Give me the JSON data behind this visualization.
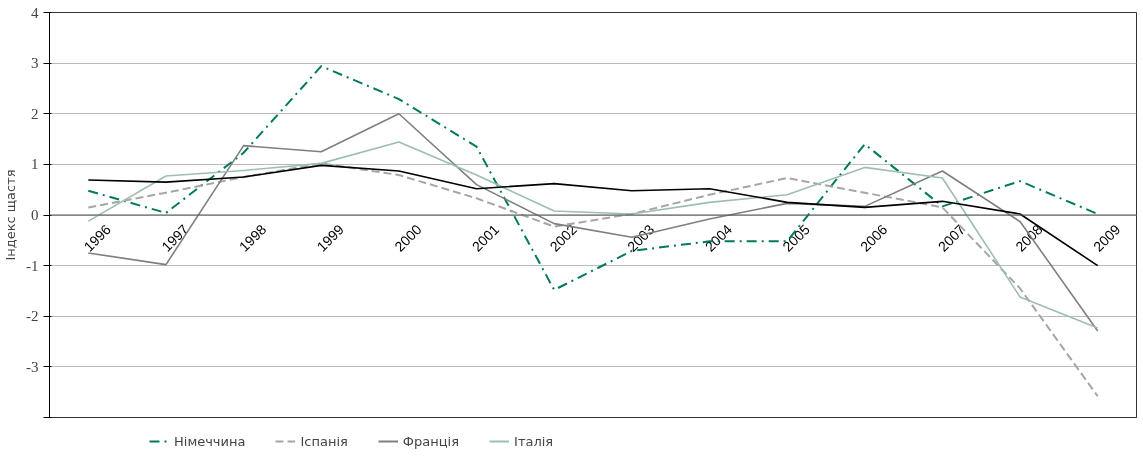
{
  "chart_data": {
    "type": "line",
    "ylabel": "Індекс щастя",
    "categories": [
      "1996",
      "1997",
      "1998",
      "1999",
      "2000",
      "2001",
      "2002",
      "2003",
      "2004",
      "2005",
      "2006",
      "2007",
      "2008",
      "2009"
    ],
    "series": [
      {
        "name": "Німеччина",
        "color": "#007a5e",
        "line_style": "dashdot",
        "values": [
          0.48,
          0.04,
          1.23,
          2.94,
          2.29,
          1.35,
          -1.48,
          -0.71,
          -0.52,
          -0.52,
          1.4,
          0.17,
          0.67,
          0.02
        ]
      },
      {
        "name": "Іспанія",
        "color": "#a6a6a6",
        "line_style": "dashed",
        "values": [
          0.15,
          0.44,
          0.75,
          1.02,
          0.79,
          0.33,
          -0.23,
          0.02,
          0.4,
          0.73,
          0.44,
          0.15,
          -1.45,
          -3.58
        ]
      },
      {
        "name": "Франція",
        "color": "#7f7f7f",
        "line_style": "solid",
        "values": [
          -0.75,
          -0.98,
          1.37,
          1.25,
          2.0,
          0.6,
          -0.17,
          -0.44,
          -0.08,
          0.23,
          0.17,
          0.87,
          -0.13,
          -2.29
        ]
      },
      {
        "name": "Італія",
        "color": "#9dbfae",
        "line_style": "solid",
        "values": [
          -0.12,
          0.77,
          0.88,
          1.02,
          1.44,
          0.79,
          0.08,
          0.02,
          0.25,
          0.4,
          0.94,
          0.73,
          -1.62,
          -2.23
        ]
      },
      {
        "color": "#000000",
        "line_style": "solid",
        "values": [
          0.69,
          0.65,
          0.75,
          0.98,
          0.87,
          0.52,
          0.62,
          0.48,
          0.52,
          0.25,
          0.15,
          0.27,
          0.02,
          -1.0
        ]
      }
    ],
    "ylim": [
      -4,
      4
    ],
    "yticks": [
      {
        "value": -4,
        "label": null
      },
      -3,
      -2,
      -1,
      0,
      1,
      2,
      3,
      4
    ],
    "grid": "y",
    "legend": "bottom",
    "marker": "none"
  }
}
